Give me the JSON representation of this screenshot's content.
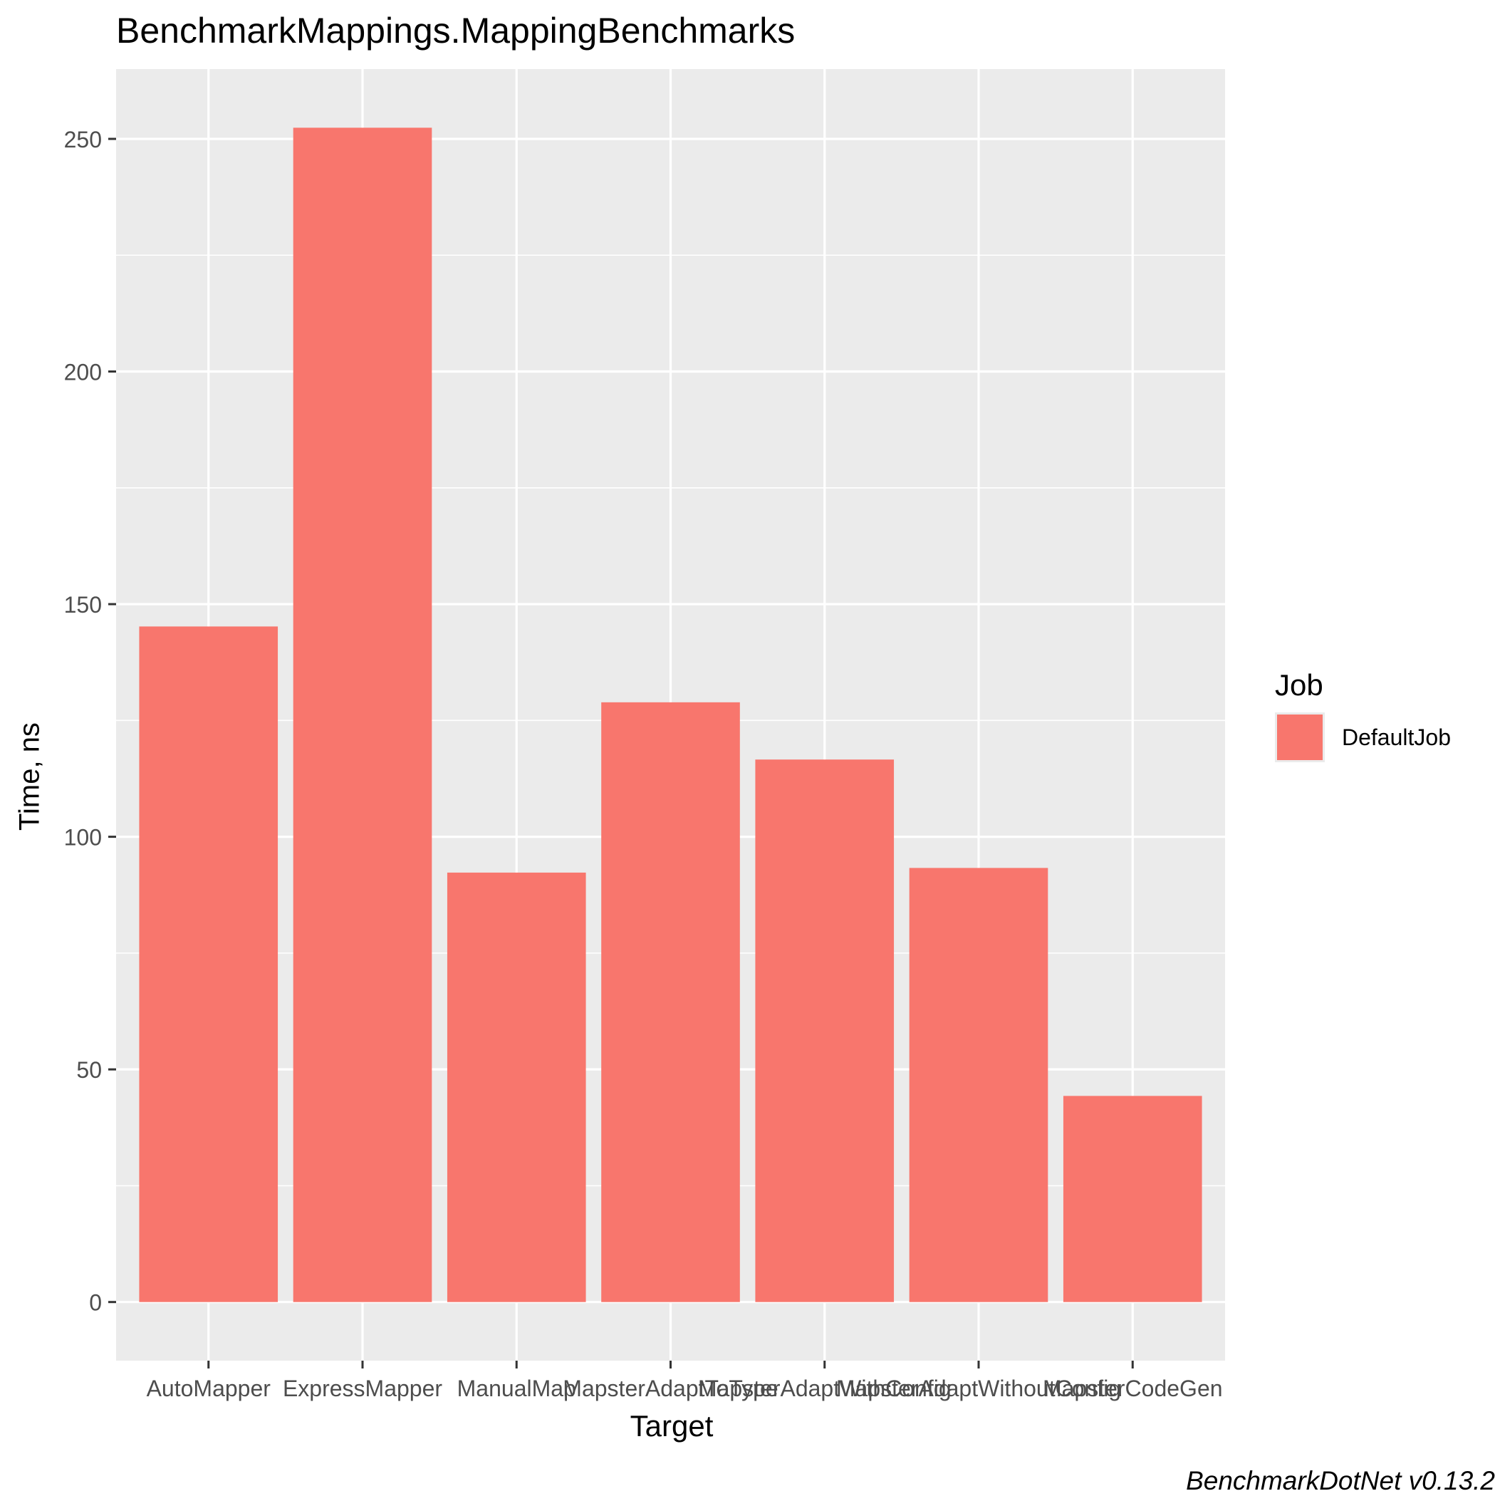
{
  "chart_data": {
    "type": "bar",
    "title": "BenchmarkMappings.MappingBenchmarks",
    "xlabel": "Target",
    "ylabel": "Time, ns",
    "categories": [
      "AutoMapper",
      "ExpressMapper",
      "ManualMap",
      "MapsterAdaptToType",
      "MapsterAdaptWithConfig",
      "MapsterAdaptWithoutConfig",
      "MapsterCodeGen"
    ],
    "series": [
      {
        "name": "DefaultJob",
        "values": [
          145.2,
          252.4,
          92.3,
          128.9,
          116.6,
          93.3,
          44.3
        ]
      }
    ],
    "ylim": [
      -12.6,
      265.0
    ],
    "yticks": [
      0,
      50,
      100,
      150,
      200,
      250
    ],
    "grid": true,
    "legend_title": "Job",
    "legend_position": "right",
    "bar_color": "#F8766D",
    "panel_color": "#EBEBEB"
  },
  "footer": {
    "caption": "BenchmarkDotNet v0.13.2"
  }
}
